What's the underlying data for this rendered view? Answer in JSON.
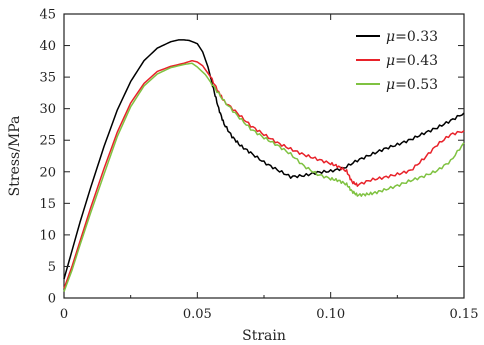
{
  "chart_data": {
    "type": "line",
    "xlabel": "Strain",
    "ylabel": "Stress/MPa",
    "xlim": [
      0,
      0.15
    ],
    "ylim": [
      0,
      45
    ],
    "x_ticks": [
      0,
      0.05,
      0.1,
      0.15
    ],
    "x_tick_labels": [
      "0",
      "0.05",
      "0.10",
      "0.15"
    ],
    "y_ticks": [
      0,
      5,
      10,
      15,
      20,
      25,
      30,
      35,
      40,
      45
    ],
    "y_tick_labels": [
      "0",
      "5",
      "10",
      "15",
      "20",
      "25",
      "30",
      "35",
      "40",
      "45"
    ],
    "grid": false,
    "legend_position": "top-right",
    "series": [
      {
        "name": "μ=0.33",
        "mu_symbol": "μ",
        "mu_value": "=0.33",
        "color": "#000000",
        "x": [
          0.0,
          0.003,
          0.006,
          0.01,
          0.015,
          0.02,
          0.025,
          0.03,
          0.035,
          0.04,
          0.043,
          0.045,
          0.047,
          0.05,
          0.052,
          0.054,
          0.056,
          0.058,
          0.06,
          0.063,
          0.066,
          0.07,
          0.075,
          0.08,
          0.085,
          0.09,
          0.095,
          0.1,
          0.105,
          0.11,
          0.115,
          0.12,
          0.125,
          0.13,
          0.135,
          0.14,
          0.145,
          0.15
        ],
        "y": [
          3.0,
          7.5,
          12.0,
          17.5,
          24.0,
          29.8,
          34.3,
          37.6,
          39.6,
          40.6,
          40.9,
          40.9,
          40.8,
          40.3,
          39.0,
          36.6,
          33.2,
          30.0,
          27.6,
          25.6,
          24.2,
          23.0,
          21.5,
          20.3,
          19.2,
          19.4,
          19.9,
          20.1,
          20.6,
          21.8,
          22.7,
          23.6,
          24.3,
          25.1,
          26.1,
          27.0,
          28.1,
          29.3
        ]
      },
      {
        "name": "μ=0.43",
        "mu_symbol": "μ",
        "mu_value": "=0.43",
        "color": "#e8222a",
        "x": [
          0.0,
          0.003,
          0.006,
          0.01,
          0.015,
          0.02,
          0.025,
          0.03,
          0.035,
          0.04,
          0.045,
          0.048,
          0.05,
          0.052,
          0.055,
          0.058,
          0.06,
          0.065,
          0.07,
          0.075,
          0.08,
          0.085,
          0.09,
          0.095,
          0.1,
          0.103,
          0.106,
          0.108,
          0.11,
          0.115,
          0.12,
          0.125,
          0.13,
          0.135,
          0.14,
          0.145,
          0.15
        ],
        "y": [
          1.5,
          5.0,
          9.0,
          14.3,
          20.5,
          26.3,
          30.9,
          34.0,
          35.9,
          36.7,
          37.2,
          37.6,
          37.4,
          36.8,
          35.0,
          32.6,
          31.2,
          29.3,
          27.3,
          25.9,
          24.6,
          23.6,
          22.7,
          22.0,
          21.3,
          20.8,
          20.1,
          18.4,
          17.9,
          18.7,
          19.1,
          19.6,
          20.2,
          22.1,
          24.3,
          25.9,
          26.5
        ]
      },
      {
        "name": "μ=0.53",
        "mu_symbol": "μ",
        "mu_value": "=0.53",
        "color": "#7fc241",
        "x": [
          0.0,
          0.003,
          0.006,
          0.01,
          0.015,
          0.02,
          0.025,
          0.03,
          0.035,
          0.04,
          0.045,
          0.048,
          0.05,
          0.053,
          0.056,
          0.06,
          0.065,
          0.07,
          0.075,
          0.08,
          0.085,
          0.09,
          0.095,
          0.1,
          0.103,
          0.106,
          0.108,
          0.11,
          0.113,
          0.116,
          0.12,
          0.125,
          0.13,
          0.135,
          0.14,
          0.145,
          0.15
        ],
        "y": [
          1.0,
          4.4,
          8.4,
          13.5,
          19.6,
          25.6,
          30.3,
          33.6,
          35.5,
          36.5,
          37.0,
          37.2,
          36.6,
          35.4,
          33.6,
          31.2,
          28.9,
          26.8,
          25.4,
          24.2,
          22.8,
          20.9,
          19.6,
          18.9,
          18.6,
          18.0,
          16.9,
          16.3,
          16.4,
          16.6,
          17.1,
          17.8,
          18.6,
          19.3,
          20.2,
          21.7,
          24.6
        ]
      }
    ]
  }
}
